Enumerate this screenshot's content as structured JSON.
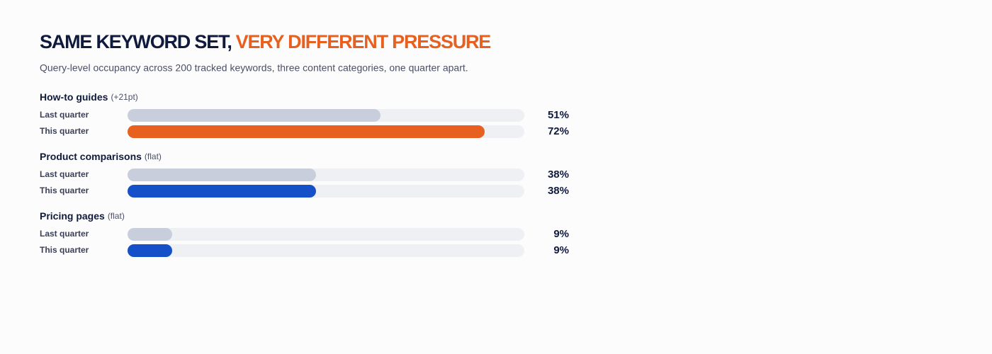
{
  "chart_data": {
    "type": "bar",
    "title": "SAME KEYWORD SET,",
    "title_highlight": "VERY DIFFERENT PRESSURE",
    "subtitle": "Query-level occupancy across 200 tracked keywords, three content categories, one quarter apart.",
    "xlim": [
      0,
      80
    ],
    "track_color": "#eff0f4",
    "highlight_color": "#e8601f",
    "groups": [
      {
        "name": "How-to guides",
        "note": "(+21pt)",
        "categories": [
          "Last quarter",
          "This quarter"
        ],
        "values": [
          51,
          72
        ],
        "value_labels": [
          "51%",
          "72%"
        ],
        "colors": [
          "#c9cedd",
          "#e8601f"
        ]
      },
      {
        "name": "Product comparisons",
        "note": "(flat)",
        "categories": [
          "Last quarter",
          "This quarter"
        ],
        "values": [
          38,
          38
        ],
        "value_labels": [
          "38%",
          "38%"
        ],
        "colors": [
          "#c9cedd",
          "#1550c8"
        ]
      },
      {
        "name": "Pricing pages",
        "note": "(flat)",
        "categories": [
          "Last quarter",
          "This quarter"
        ],
        "values": [
          9,
          9
        ],
        "value_labels": [
          "9%",
          "9%"
        ],
        "colors": [
          "#c9cedd",
          "#1550c8"
        ]
      }
    ]
  }
}
